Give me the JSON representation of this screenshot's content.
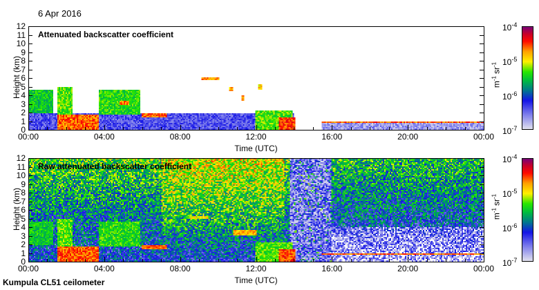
{
  "header": {
    "date": "6 Apr 2016"
  },
  "footer": {
    "instrument": "Kumpula CL51 ceilometer"
  },
  "chart_data": [
    {
      "type": "heatmap",
      "title": "Attenuated backscatter coefficient",
      "xlabel": "Time (UTC)",
      "ylabel": "Height (km)",
      "xlim": [
        0,
        24
      ],
      "ylim": [
        0,
        12
      ],
      "xticks": [
        "00:00",
        "04:00",
        "08:00",
        "12:00",
        "16:00",
        "20:00",
        "00:00"
      ],
      "yticks": [
        "0",
        "1",
        "2",
        "3",
        "4",
        "5",
        "6",
        "7",
        "8",
        "9",
        "10",
        "11",
        "12"
      ],
      "colorbar": {
        "scale": "log",
        "range": [
          1e-07,
          0.0001
        ],
        "labels": [
          {
            "base": "10",
            "exp": "-4"
          },
          {
            "base": "10",
            "exp": "-5"
          },
          {
            "base": "10",
            "exp": "-6"
          },
          {
            "base": "10",
            "exp": "-7"
          }
        ],
        "units": {
          "m": "m",
          "m_exp": "-1",
          "sr": "sr",
          "sr_exp": "-1"
        }
      },
      "noise_background": false,
      "features_log10": [
        {
          "t": [
            0,
            14
          ],
          "h": [
            0,
            1.9
          ],
          "v": -6.4
        },
        {
          "t": [
            0,
            1.3
          ],
          "h": [
            2,
            4.6
          ],
          "v": -5.5
        },
        {
          "t": [
            1.5,
            2.3
          ],
          "h": [
            1.8,
            4.9
          ],
          "v": -5.3
        },
        {
          "t": [
            1.5,
            3.7
          ],
          "h": [
            0,
            1.8
          ],
          "v": -4.6
        },
        {
          "t": [
            3.7,
            5.9
          ],
          "h": [
            1.8,
            4.6
          ],
          "v": -5.4
        },
        {
          "t": [
            4.8,
            5.3
          ],
          "h": [
            2.9,
            3.4
          ],
          "v": -4.7
        },
        {
          "t": [
            6,
            7.3
          ],
          "h": [
            1.5,
            1.9
          ],
          "v": -4.6
        },
        {
          "t": [
            9.1,
            10.1
          ],
          "h": [
            5.7,
            6.1
          ],
          "v": -4.7
        },
        {
          "t": [
            10.6,
            10.8
          ],
          "h": [
            4.5,
            5
          ],
          "v": -4.8
        },
        {
          "t": [
            11.2,
            11.4
          ],
          "h": [
            3.3,
            4
          ],
          "v": -4.8
        },
        {
          "t": [
            12.1,
            12.3
          ],
          "h": [
            4.6,
            5.3
          ],
          "v": -4.9
        },
        {
          "t": [
            12,
            13.9
          ],
          "h": [
            0,
            2.2
          ],
          "v": -5.3
        },
        {
          "t": [
            13.2,
            14.1
          ],
          "h": [
            0,
            1.4
          ],
          "v": -4.5
        },
        {
          "t": [
            15.5,
            24
          ],
          "h": [
            0,
            0.8
          ],
          "v": -6.7
        },
        {
          "t": [
            15.5,
            24
          ],
          "h": [
            0.8,
            1.0
          ],
          "v": -4.6
        }
      ]
    },
    {
      "type": "heatmap",
      "title": "Raw attenuated backscatter coefficient",
      "xlabel": "Time (UTC)",
      "ylabel": "Height (km)",
      "xlim": [
        0,
        24
      ],
      "ylim": [
        0,
        12
      ],
      "xticks": [
        "00:00",
        "04:00",
        "08:00",
        "12:00",
        "16:00",
        "20:00",
        "00:00"
      ],
      "yticks": [
        "0",
        "1",
        "2",
        "3",
        "4",
        "5",
        "6",
        "7",
        "8",
        "9",
        "10",
        "11",
        "12"
      ],
      "colorbar": {
        "scale": "log",
        "range": [
          1e-07,
          0.0001
        ],
        "labels": [
          {
            "base": "10",
            "exp": "-4"
          },
          {
            "base": "10",
            "exp": "-5"
          },
          {
            "base": "10",
            "exp": "-6"
          },
          {
            "base": "10",
            "exp": "-7"
          }
        ],
        "units": {
          "m": "m",
          "m_exp": "-1",
          "sr": "sr",
          "sr_exp": "-1"
        }
      },
      "noise_background": true,
      "features_log10": [
        {
          "t": [
            0,
            14
          ],
          "h": [
            0,
            1.9
          ],
          "v": -6.4
        },
        {
          "t": [
            0,
            1.3
          ],
          "h": [
            2,
            4.6
          ],
          "v": -5.5
        },
        {
          "t": [
            1.5,
            2.3
          ],
          "h": [
            1.8,
            4.9
          ],
          "v": -5.3
        },
        {
          "t": [
            1.5,
            3.7
          ],
          "h": [
            0,
            1.8
          ],
          "v": -4.6
        },
        {
          "t": [
            3.7,
            5.9
          ],
          "h": [
            1.8,
            4.6
          ],
          "v": -5.4
        },
        {
          "t": [
            6,
            7.3
          ],
          "h": [
            1.5,
            1.9
          ],
          "v": -4.6
        },
        {
          "t": [
            8.5,
            9.5
          ],
          "h": [
            5,
            5.3
          ],
          "v": -5.0
        },
        {
          "t": [
            10.8,
            12
          ],
          "h": [
            3,
            3.6
          ],
          "v": -4.8
        },
        {
          "t": [
            12,
            13.9
          ],
          "h": [
            0,
            2.2
          ],
          "v": -5.3
        },
        {
          "t": [
            13.2,
            14.1
          ],
          "h": [
            0,
            1.4
          ],
          "v": -4.5
        },
        {
          "t": [
            15.5,
            24
          ],
          "h": [
            0.8,
            1.0
          ],
          "v": -4.6
        }
      ]
    }
  ]
}
